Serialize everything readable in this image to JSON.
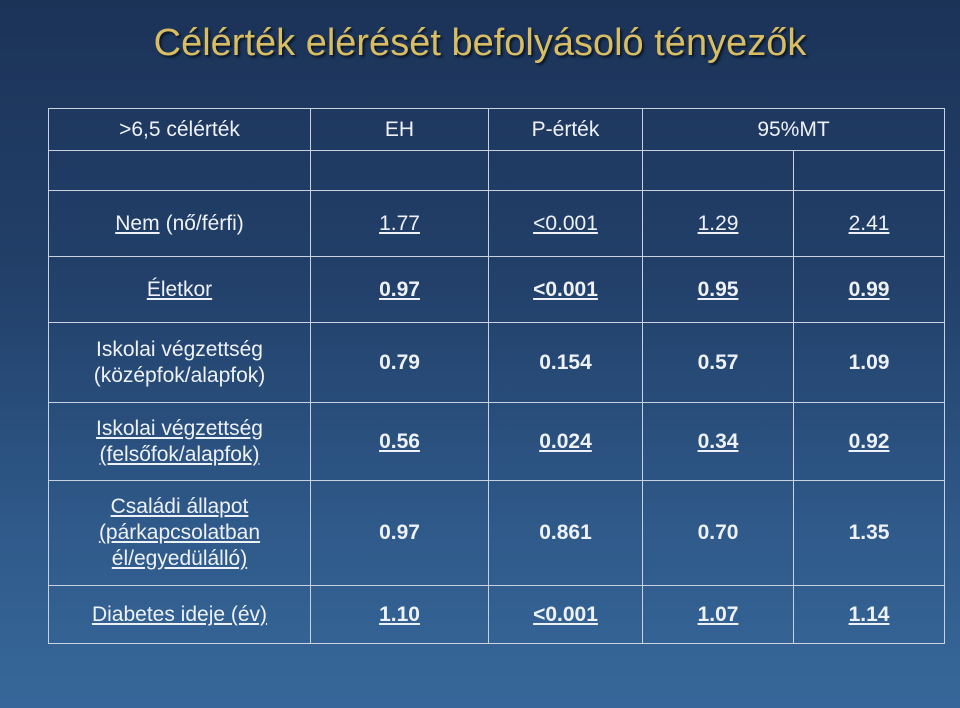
{
  "header": {
    "title": "Célérték elérését befolyásoló tényezők"
  },
  "table": {
    "columns": [
      ">6,5 célérték",
      "EH",
      "P-érték",
      "95%MT"
    ],
    "rows": [
      {
        "label": [
          "Nem",
          "(nő/férfi)"
        ],
        "cells": [
          "1.77",
          "<0.001",
          "1.29",
          "2.41"
        ]
      },
      {
        "label": [
          "Életkor"
        ],
        "cells": [
          "0.97",
          "<0.001",
          "0.95",
          "0.99"
        ]
      },
      {
        "label": [
          "Iskolai végzettség",
          "(középfok/alapfok)"
        ],
        "cells": [
          "0.79",
          "0.154",
          "0.57",
          "1.09"
        ]
      },
      {
        "label": [
          "Iskolai végzettség",
          "(felsőfok/alapfok)"
        ],
        "cells": [
          "0.56",
          "0.024",
          "0.34",
          "0.92"
        ]
      },
      {
        "label": [
          "Családi állapot",
          "(párkapcsolatban",
          "él/egyedülálló)"
        ],
        "cells": [
          "0.97",
          "0.861",
          "0.70",
          "1.35"
        ]
      },
      {
        "label": [
          "Diabetes ideje (év)"
        ],
        "cells": [
          "1.10",
          "<0.001",
          "1.07",
          "1.14"
        ]
      }
    ]
  }
}
